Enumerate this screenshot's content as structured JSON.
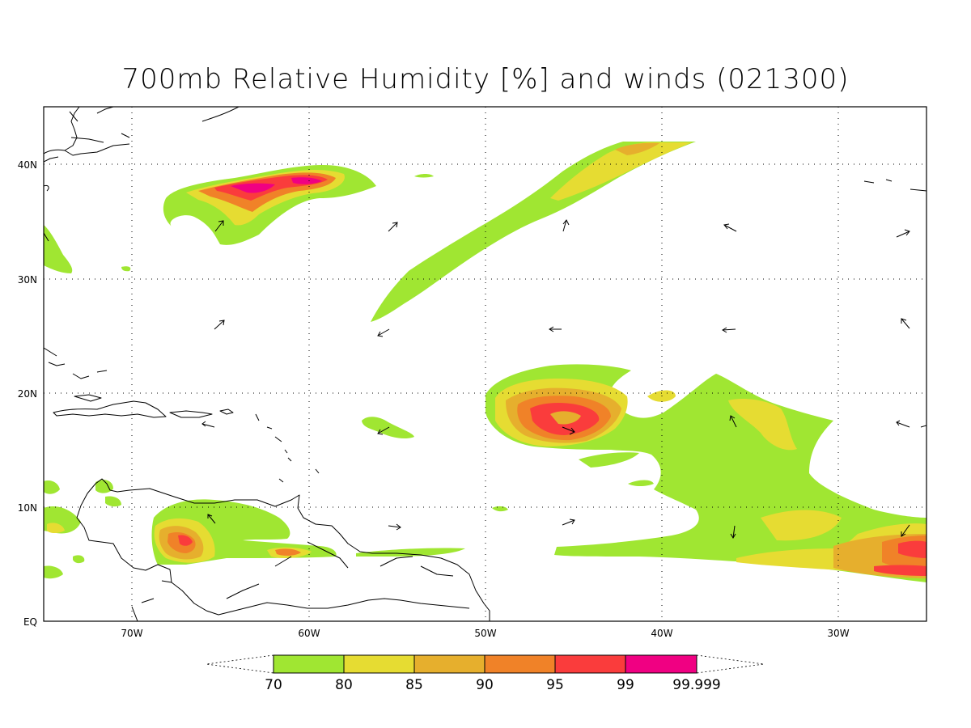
{
  "title": "700mb Relative Humidity [%] and winds (021300)",
  "map": {
    "x_ticks": [
      "70W",
      "60W",
      "50W",
      "40W",
      "30W"
    ],
    "y_ticks": [
      "EQ",
      "10N",
      "20N",
      "30N",
      "40N"
    ]
  },
  "colorbar": {
    "labels": [
      "70",
      "80",
      "85",
      "90",
      "95",
      "99",
      "99.999"
    ],
    "colors": [
      "#a0e632",
      "#e6dc32",
      "#e6af2d",
      "#f08228",
      "#fa3c3c",
      "#f00082"
    ]
  }
}
